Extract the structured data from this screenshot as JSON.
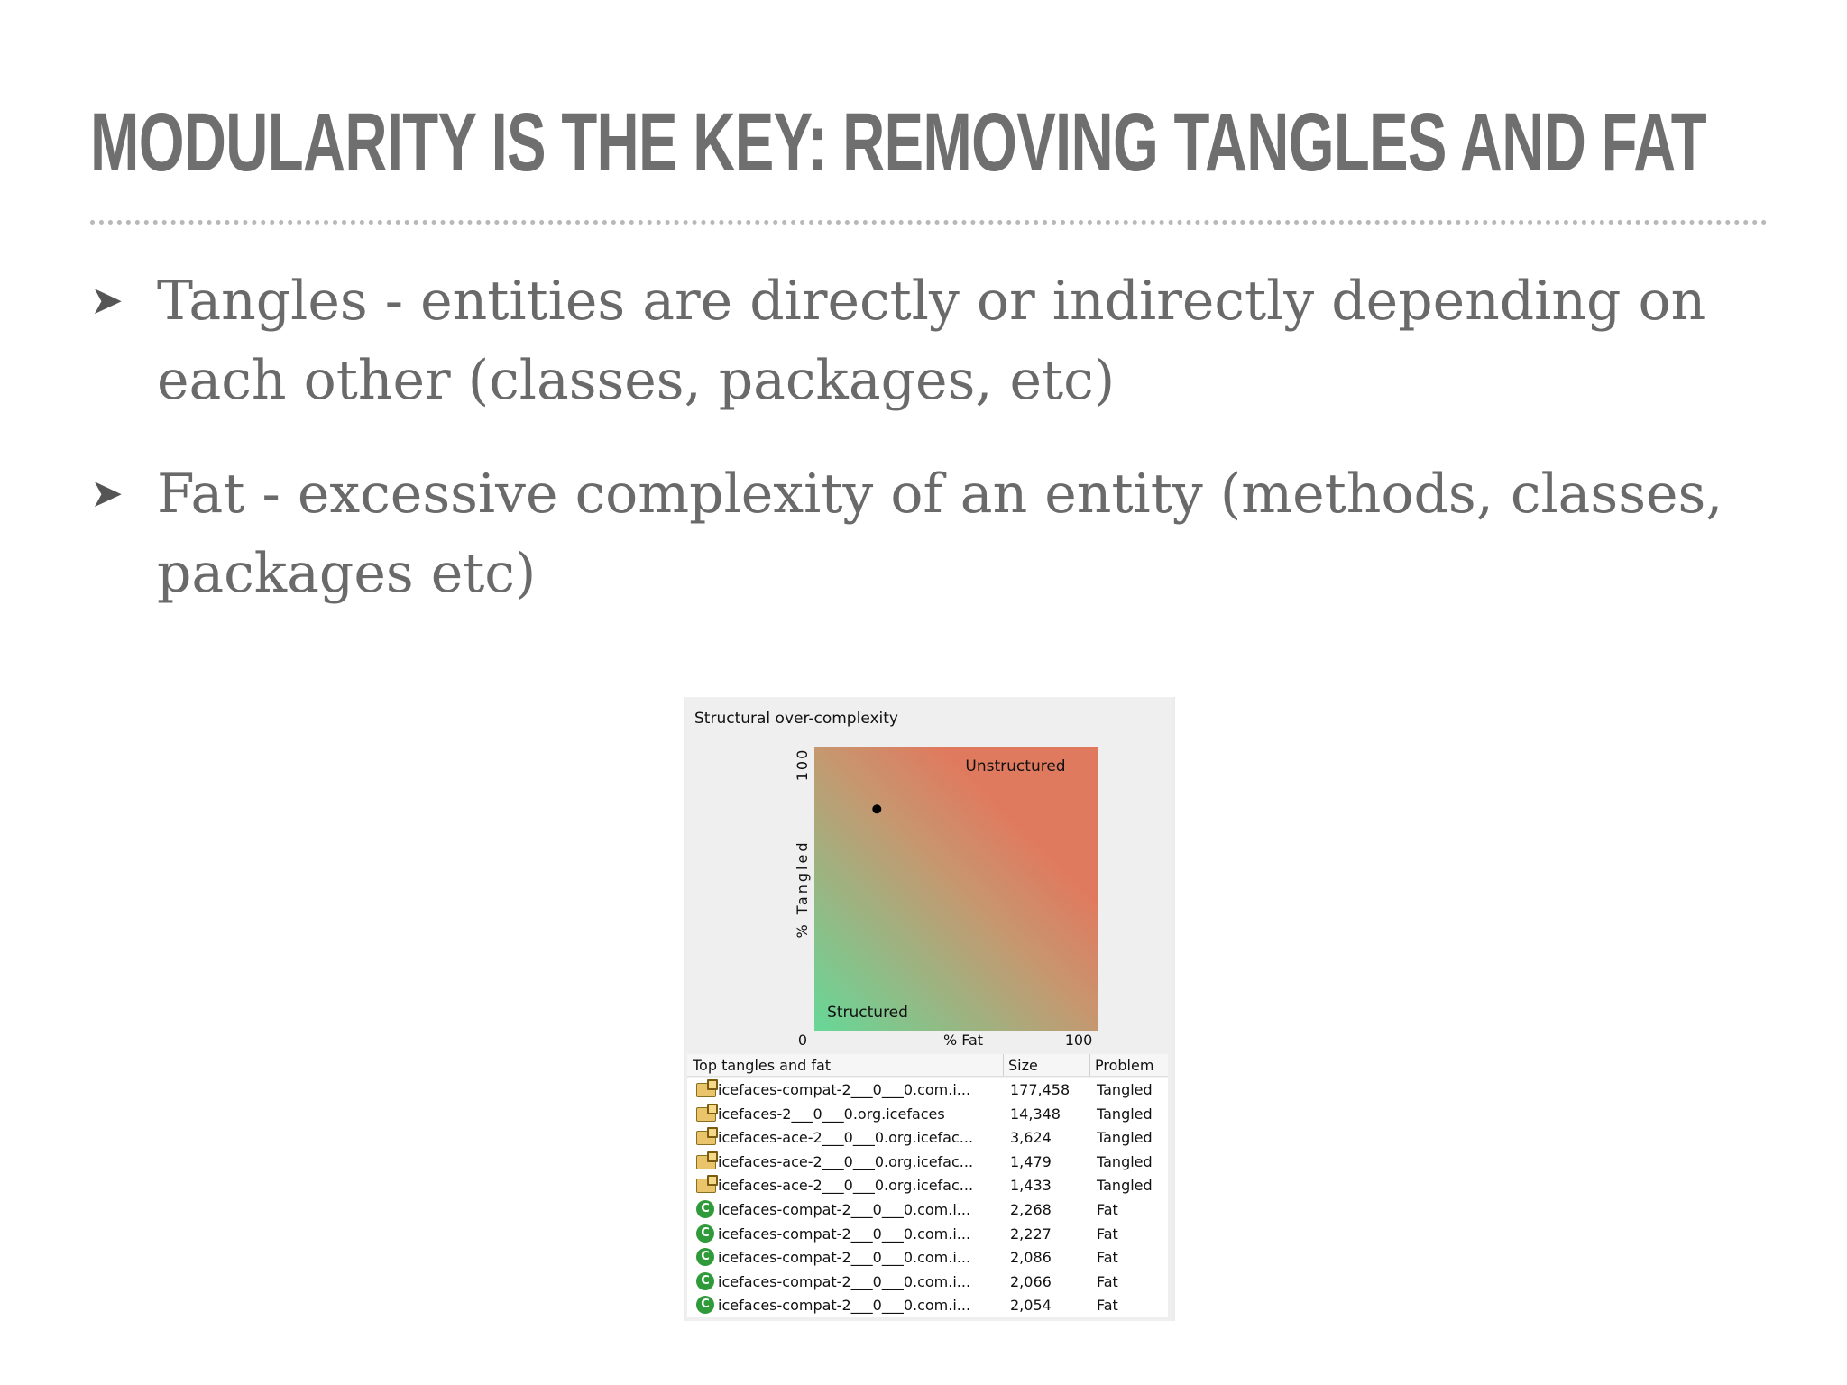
{
  "slide": {
    "title": "MODULARITY IS THE KEY: REMOVING TANGLES AND FAT",
    "bullets": [
      {
        "text": "Tangles - entities are directly or indirectly depending on each other (classes, packages, etc)"
      },
      {
        "text": "Fat - excessive complexity of an entity (methods, classes, packages etc)"
      }
    ],
    "bullet_marker": "➤"
  },
  "panel": {
    "title": "Structural over-complexity",
    "chart": {
      "ylabel": "% Tangled",
      "xlabel": "% Fat",
      "x_min_label": "0",
      "x_max_label": "100",
      "y_max_label": "100",
      "label_top_right": "Unstructured",
      "label_bottom_left": "Structured",
      "colors": {
        "structured": "#66d898",
        "unstructured": "#e07a5f"
      }
    },
    "table": {
      "headers": {
        "name": "Top tangles and fat",
        "size": "Size",
        "problem": "Problem"
      },
      "rows": [
        {
          "icon": "package-tangle-icon",
          "name": "icefaces-compat-2___0___0.com.i...",
          "size": "177,458",
          "problem": "Tangled"
        },
        {
          "icon": "package-tangle-icon",
          "name": "icefaces-2___0___0.org.icefaces",
          "size": "14,348",
          "problem": "Tangled"
        },
        {
          "icon": "package-tangle-icon",
          "name": "icefaces-ace-2___0___0.org.icefac...",
          "size": "3,624",
          "problem": "Tangled"
        },
        {
          "icon": "package-tangle-icon",
          "name": "icefaces-ace-2___0___0.org.icefac...",
          "size": "1,479",
          "problem": "Tangled"
        },
        {
          "icon": "package-tangle-icon",
          "name": "icefaces-ace-2___0___0.org.icefac...",
          "size": "1,433",
          "problem": "Tangled"
        },
        {
          "icon": "class-icon",
          "name": "icefaces-compat-2___0___0.com.i...",
          "size": "2,268",
          "problem": "Fat"
        },
        {
          "icon": "class-icon",
          "name": "icefaces-compat-2___0___0.com.i...",
          "size": "2,227",
          "problem": "Fat"
        },
        {
          "icon": "class-icon",
          "name": "icefaces-compat-2___0___0.com.i...",
          "size": "2,086",
          "problem": "Fat"
        },
        {
          "icon": "class-icon",
          "name": "icefaces-compat-2___0___0.com.i...",
          "size": "2,066",
          "problem": "Fat"
        },
        {
          "icon": "class-icon",
          "name": "icefaces-compat-2___0___0.com.i...",
          "size": "2,054",
          "problem": "Fat"
        }
      ],
      "class_icon_glyph": "C"
    }
  },
  "chart_data": {
    "type": "scatter",
    "title": "Structural over-complexity",
    "xlabel": "% Fat",
    "ylabel": "% Tangled",
    "xlim": [
      0,
      100
    ],
    "ylim": [
      0,
      100
    ],
    "points": [
      {
        "x": 22,
        "y": 78
      }
    ],
    "annotations": [
      "Unstructured",
      "Structured"
    ],
    "grid": false
  }
}
